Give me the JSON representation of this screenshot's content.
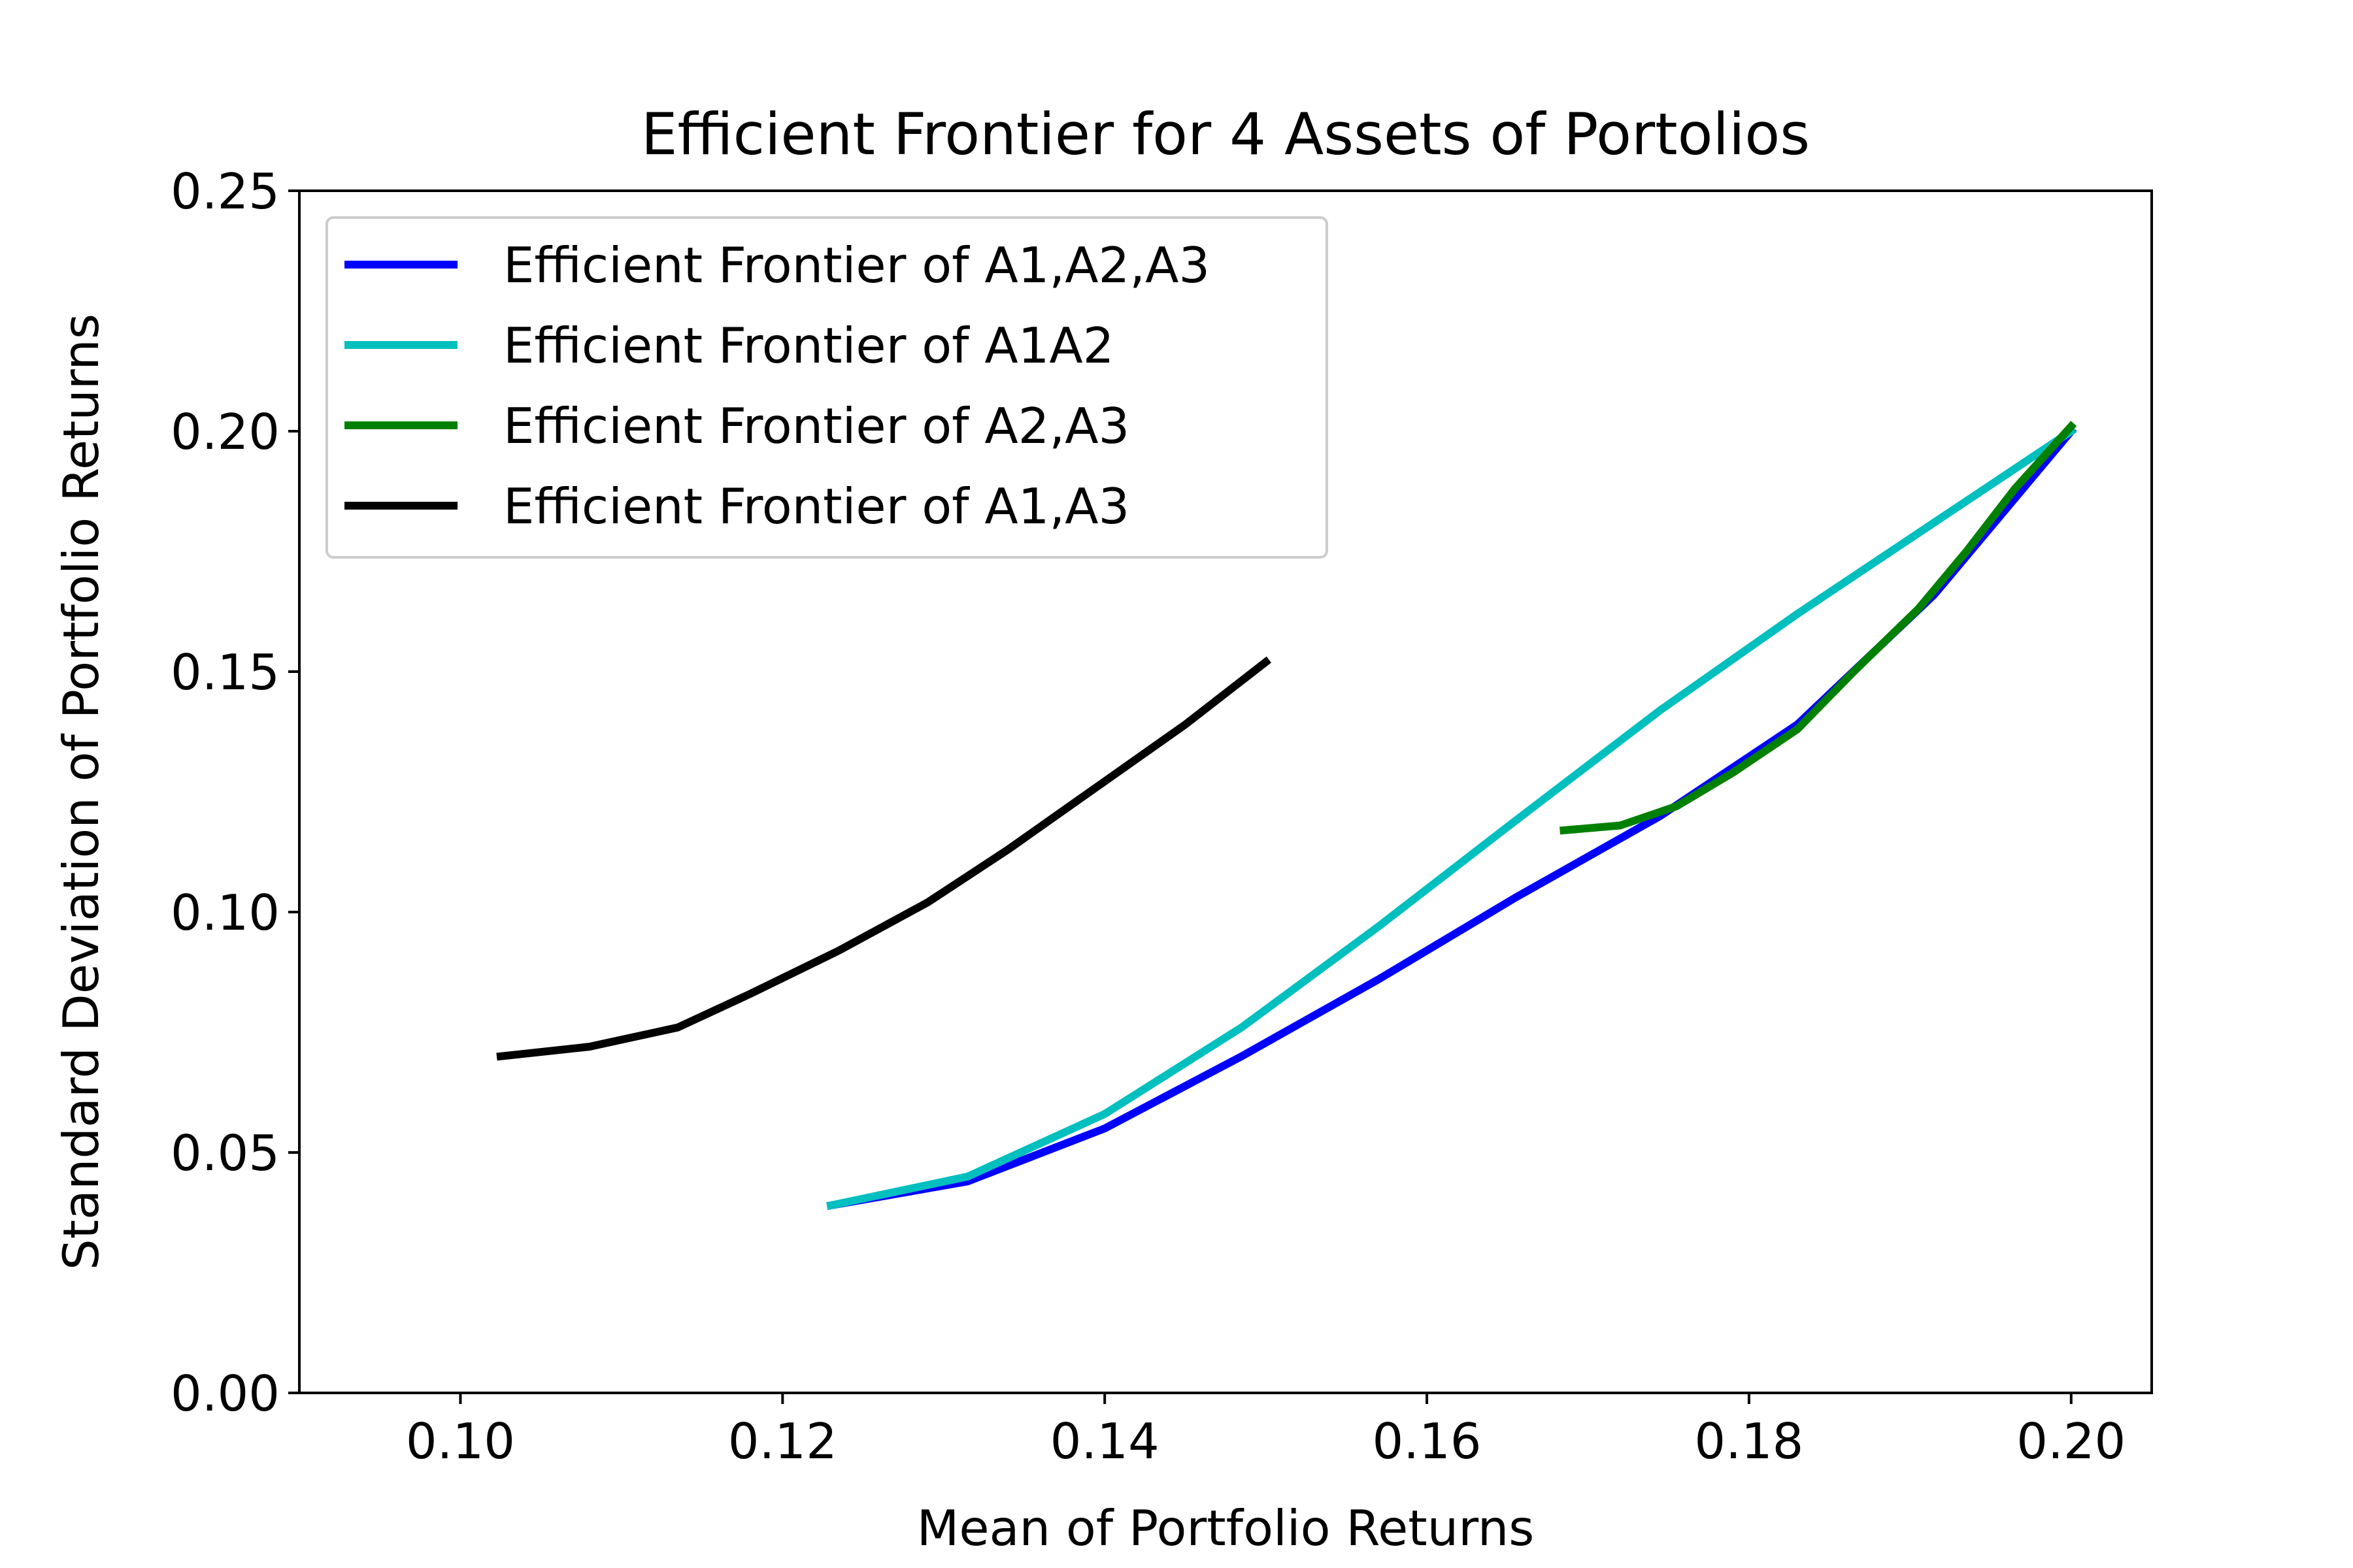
{
  "chart_data": {
    "type": "line",
    "title": "Efficient Frontier for 4 Assets of Portolios",
    "xlabel": "Mean of Portfolio Returns",
    "ylabel": "Standard Deviation of Portfolio Returns",
    "xlim": [
      0.09,
      0.205
    ],
    "ylim": [
      0.0,
      0.25
    ],
    "x_ticks": [
      "0.10",
      "0.12",
      "0.14",
      "0.16",
      "0.18",
      "0.20"
    ],
    "x_tick_values": [
      0.1,
      0.12,
      0.14,
      0.16,
      0.18,
      0.2
    ],
    "y_ticks": [
      "0.00",
      "0.05",
      "0.10",
      "0.15",
      "0.20",
      "0.25"
    ],
    "y_tick_values": [
      0.0,
      0.05,
      0.1,
      0.15,
      0.2,
      0.25
    ],
    "grid": false,
    "legend_position": "upper-left",
    "series": [
      {
        "name": "Efficient Frontier of A1,A2,A3",
        "color": "#0000ff",
        "x": [
          0.123,
          0.1315,
          0.14,
          0.1485,
          0.157,
          0.1655,
          0.1745,
          0.183,
          0.1915,
          0.2
        ],
        "y": [
          0.039,
          0.044,
          0.055,
          0.07,
          0.086,
          0.103,
          0.12,
          0.139,
          0.166,
          0.2
        ]
      },
      {
        "name": "Efficient Frontier of A1A2",
        "color": "#00bfbf",
        "x": [
          0.123,
          0.1315,
          0.14,
          0.1485,
          0.157,
          0.1655,
          0.1745,
          0.183,
          0.1915,
          0.2
        ],
        "y": [
          0.039,
          0.045,
          0.058,
          0.076,
          0.097,
          0.119,
          0.142,
          0.162,
          0.181,
          0.2
        ]
      },
      {
        "name": "Efficient Frontier of A2,A3",
        "color": "#008000",
        "x": [
          0.1685,
          0.172,
          0.1755,
          0.179,
          0.183,
          0.1865,
          0.1905,
          0.1935,
          0.1965,
          0.2
        ],
        "y": [
          0.117,
          0.118,
          0.122,
          0.129,
          0.138,
          0.15,
          0.163,
          0.175,
          0.188,
          0.201
        ]
      },
      {
        "name": "Efficient Frontier of A1,A3",
        "color": "#000000",
        "x": [
          0.1025,
          0.108,
          0.1135,
          0.118,
          0.1235,
          0.129,
          0.134,
          0.1395,
          0.145,
          0.15
        ],
        "y": [
          0.07,
          0.072,
          0.076,
          0.083,
          0.092,
          0.102,
          0.113,
          0.126,
          0.139,
          0.152
        ]
      }
    ]
  }
}
